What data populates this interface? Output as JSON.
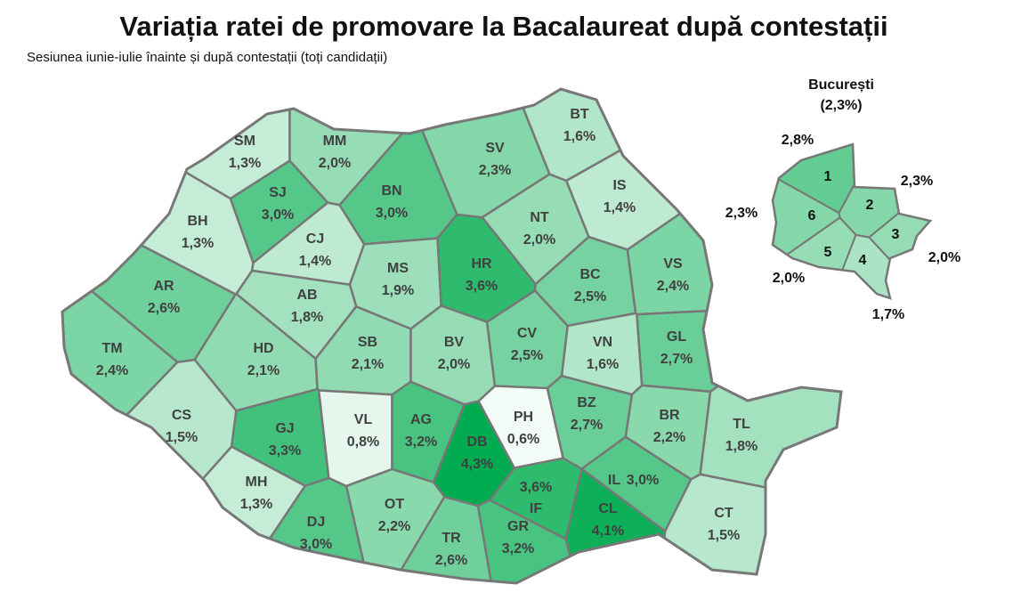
{
  "chart_data": {
    "type": "choropleth",
    "title": "Variația ratei de promovare la Bacalaureat după contestații",
    "subtitle": "Sesiunea iunie-iulie înainte și după contestații (toți candidații)",
    "color_scale": [
      "#f2fbf5",
      "#00ac4f"
    ],
    "categories": [
      "SM",
      "MM",
      "BT",
      "SV",
      "SJ",
      "BN",
      "IS",
      "BH",
      "CJ",
      "NT",
      "MS",
      "HR",
      "BC",
      "VS",
      "AR",
      "AB",
      "TM",
      "HD",
      "SB",
      "BV",
      "CV",
      "VN",
      "GL",
      "CS",
      "GJ",
      "VL",
      "AG",
      "DB",
      "PH",
      "BZ",
      "BR",
      "TL",
      "MH",
      "OT",
      "DJ",
      "TR",
      "GR",
      "IF",
      "IL",
      "CL",
      "CT"
    ],
    "values": [
      1.3,
      2.0,
      1.6,
      2.3,
      3.0,
      3.0,
      1.4,
      1.3,
      1.4,
      2.0,
      1.9,
      3.6,
      2.5,
      2.4,
      2.6,
      1.8,
      2.4,
      2.1,
      2.1,
      2.0,
      2.5,
      1.6,
      2.7,
      1.5,
      3.3,
      0.8,
      3.2,
      4.3,
      0.6,
      2.7,
      2.2,
      1.8,
      1.3,
      2.2,
      3.0,
      2.6,
      3.2,
      3.6,
      3.0,
      4.1,
      1.5
    ],
    "value_labels": [
      "1,3%",
      "2,0%",
      "1,6%",
      "2,3%",
      "3,0%",
      "3,0%",
      "1,4%",
      "1,3%",
      "1,4%",
      "2,0%",
      "1,9%",
      "3,6%",
      "2,5%",
      "2,4%",
      "2,6%",
      "1,8%",
      "2,4%",
      "2,1%",
      "2,1%",
      "2,0%",
      "2,5%",
      "1,6%",
      "2,7%",
      "1,5%",
      "3,3%",
      "0,8%",
      "3,2%",
      "4,3%",
      "0,6%",
      "2,7%",
      "2,2%",
      "1,8%",
      "1,3%",
      "2,2%",
      "3,0%",
      "2,6%",
      "3,2%",
      "3,6%",
      "3,0%",
      "4,1%",
      "1,5%"
    ],
    "inset": {
      "title": "București",
      "value": 2.3,
      "value_label": "(2,3%)",
      "categories": [
        "1",
        "2",
        "3",
        "4",
        "5",
        "6"
      ],
      "values": [
        2.8,
        2.3,
        2.0,
        1.7,
        2.0,
        2.3
      ],
      "value_labels": [
        "2,8%",
        "2,3%",
        "2,0%",
        "1,7%",
        "2,0%",
        "2,3%"
      ]
    }
  }
}
